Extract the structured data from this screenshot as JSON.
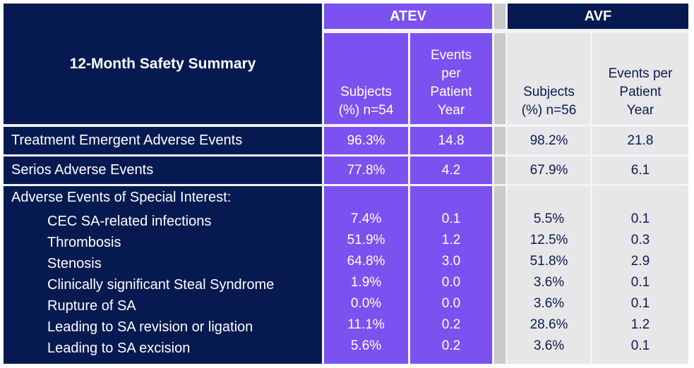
{
  "theme": {
    "navy": "#061A51",
    "purple": "#7B52F0",
    "spacer_gray": "#C9CACC",
    "cell_gray": "#E7E7E9",
    "gap": "#F3F2F4",
    "light_text": "#FFFFFF",
    "dark_text": "#0B1C52"
  },
  "chart_data": {
    "type": "table",
    "title": "12-Month Safety Summary",
    "column_groups": [
      {
        "label": "ATEV",
        "n": 54,
        "columns": [
          "Subjects\n(%) n=54",
          "Events\nper\nPatient\nYear"
        ]
      },
      {
        "label": "AVF",
        "n": 56,
        "columns": [
          "Subjects\n(%) n=56",
          "Events per\nPatient\nYear"
        ]
      }
    ],
    "value_column_keys": [
      "ATEV Subjects (%)",
      "ATEV Events per Patient Year",
      "AVF Subjects (%)",
      "AVF Events per Patient Year"
    ],
    "rows": [
      {
        "label": "Treatment Emergent Adverse Events",
        "indent": 0,
        "section_header": false,
        "values": [
          "96.3%",
          "14.8",
          "98.2%",
          "21.8"
        ]
      },
      {
        "label": "Serios Adverse Events",
        "indent": 0,
        "section_header": false,
        "values": [
          "77.8%",
          "4.2",
          "67.9%",
          "6.1"
        ]
      },
      {
        "label": "Adverse Events of Special Interest:",
        "indent": 0,
        "section_header": true,
        "values": [
          "",
          "",
          "",
          ""
        ]
      },
      {
        "label": "CEC SA-related infections",
        "indent": 1,
        "section_header": false,
        "values": [
          "7.4%",
          "0.1",
          "5.5%",
          "0.1"
        ]
      },
      {
        "label": "Thrombosis",
        "indent": 1,
        "section_header": false,
        "values": [
          "51.9%",
          "1.2",
          "12.5%",
          "0.3"
        ]
      },
      {
        "label": "Stenosis",
        "indent": 1,
        "section_header": false,
        "values": [
          "64.8%",
          "3.0",
          "51.8%",
          "2.9"
        ]
      },
      {
        "label": "Clinically significant Steal Syndrome",
        "indent": 1,
        "section_header": false,
        "values": [
          "1.9%",
          "0.0",
          "3.6%",
          "0.1"
        ]
      },
      {
        "label": "Rupture of SA",
        "indent": 1,
        "section_header": false,
        "values": [
          "0.0%",
          "0.0",
          "3.6%",
          "0.1"
        ]
      },
      {
        "label": "Leading to SA revision or ligation",
        "indent": 1,
        "section_header": false,
        "values": [
          "11.1%",
          "0.2",
          "28.6%",
          "1.2"
        ]
      },
      {
        "label": "Leading to SA excision",
        "indent": 1,
        "section_header": false,
        "values": [
          "5.6%",
          "0.2",
          "3.6%",
          "0.1"
        ]
      }
    ]
  }
}
